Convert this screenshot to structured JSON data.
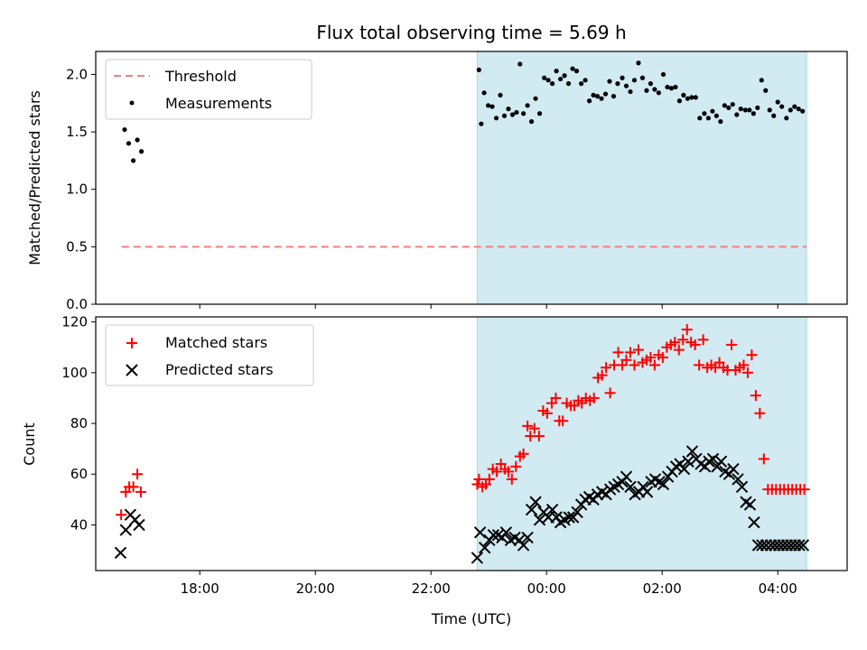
{
  "chart_data": {
    "type": "scatter",
    "title": "Flux total observing time = 5.69 h",
    "xlabel": "Time (UTC)",
    "x_units": "hours since 00:00 UTC",
    "xlim": [
      -7.8,
      5.2
    ],
    "x_ticks": [
      {
        "value": -6,
        "label": "18:00"
      },
      {
        "value": -4,
        "label": "20:00"
      },
      {
        "value": -2,
        "label": "22:00"
      },
      {
        "value": 0,
        "label": "00:00"
      },
      {
        "value": 2,
        "label": "02:00"
      },
      {
        "value": 4,
        "label": "04:00"
      }
    ],
    "shaded_span": [
      -1.2,
      4.5
    ],
    "top_panel": {
      "ylabel": "Matched/Predicted stars",
      "ylim": [
        0,
        2.2
      ],
      "y_ticks": [
        "0.0",
        "0.5",
        "1.0",
        "1.5",
        "2.0"
      ],
      "threshold": {
        "name": "Threshold",
        "value": 0.5,
        "x_range": [
          -7.35,
          4.5
        ],
        "color": "#f08080"
      },
      "measurements": {
        "name": "Measurements",
        "color": "#000000",
        "x": [
          -7.3,
          -7.23,
          -7.15,
          -7.08,
          -7.01,
          -1.17,
          -1.13,
          -1.08,
          -1.01,
          -0.94,
          -0.87,
          -0.8,
          -0.73,
          -0.66,
          -0.59,
          -0.52,
          -0.46,
          -0.4,
          -0.33,
          -0.26,
          -0.19,
          -0.12,
          -0.04,
          0.03,
          0.1,
          0.17,
          0.24,
          0.31,
          0.38,
          0.45,
          0.52,
          0.6,
          0.67,
          0.74,
          0.81,
          0.88,
          0.95,
          1.02,
          1.09,
          1.16,
          1.23,
          1.31,
          1.38,
          1.45,
          1.52,
          1.59,
          1.66,
          1.73,
          1.8,
          1.87,
          1.94,
          2.02,
          2.09,
          2.16,
          2.23,
          2.3,
          2.37,
          2.44,
          2.51,
          2.58,
          2.65,
          2.73,
          2.8,
          2.87,
          2.94,
          3.01,
          3.08,
          3.15,
          3.22,
          3.29,
          3.36,
          3.44,
          3.51,
          3.58,
          3.65,
          3.72,
          3.79,
          3.86,
          3.93,
          4.0,
          4.07,
          4.15,
          4.22,
          4.29,
          4.36,
          4.43
        ],
        "y": [
          1.52,
          1.4,
          1.25,
          1.43,
          1.33,
          2.04,
          1.57,
          1.84,
          1.73,
          1.72,
          1.62,
          1.82,
          1.64,
          1.7,
          1.65,
          1.67,
          2.09,
          1.66,
          1.73,
          1.59,
          1.79,
          1.66,
          1.97,
          1.95,
          1.92,
          2.03,
          1.96,
          1.99,
          1.92,
          2.05,
          2.03,
          1.92,
          1.95,
          1.77,
          1.82,
          1.81,
          1.79,
          1.83,
          1.94,
          1.81,
          1.92,
          1.97,
          1.9,
          1.85,
          1.95,
          2.1,
          1.97,
          1.86,
          1.92,
          1.87,
          1.84,
          2.0,
          1.89,
          1.88,
          1.89,
          1.77,
          1.82,
          1.79,
          1.8,
          1.8,
          1.62,
          1.66,
          1.62,
          1.68,
          1.64,
          1.59,
          1.73,
          1.71,
          1.74,
          1.65,
          1.7,
          1.69,
          1.69,
          1.66,
          1.71,
          1.95,
          1.86,
          1.69,
          1.64,
          1.76,
          1.72,
          1.62,
          1.69,
          1.72,
          1.7,
          1.68
        ]
      }
    },
    "bottom_panel": {
      "ylabel": "Count",
      "ylim": [
        22,
        122
      ],
      "y_ticks": [
        "40",
        "60",
        "80",
        "100",
        "120"
      ],
      "series": [
        {
          "name": "Matched stars",
          "marker": "+",
          "color": "#ff0000",
          "x": [
            -7.36,
            -7.28,
            -7.22,
            -7.15,
            -7.08,
            -7.02,
            -1.2,
            -1.17,
            -1.11,
            -1.05,
            -0.99,
            -0.93,
            -0.86,
            -0.79,
            -0.72,
            -0.66,
            -0.6,
            -0.53,
            -0.46,
            -0.4,
            -0.33,
            -0.28,
            -0.21,
            -0.13,
            -0.06,
            0.01,
            0.09,
            0.16,
            0.22,
            0.28,
            0.35,
            0.42,
            0.48,
            0.55,
            0.61,
            0.68,
            0.75,
            0.82,
            0.89,
            0.96,
            1.03,
            1.1,
            1.17,
            1.24,
            1.31,
            1.38,
            1.45,
            1.52,
            1.59,
            1.66,
            1.73,
            1.8,
            1.87,
            1.94,
            2.01,
            2.08,
            2.15,
            2.22,
            2.29,
            2.36,
            2.43,
            2.5,
            2.57,
            2.64,
            2.71,
            2.78,
            2.85,
            2.92,
            2.99,
            3.06,
            3.13,
            3.2,
            3.27,
            3.34,
            3.41,
            3.48,
            3.55,
            3.62,
            3.69,
            3.76,
            3.83,
            3.9,
            3.97,
            4.04,
            4.11,
            4.18,
            4.25,
            4.32,
            4.39,
            4.46
          ],
          "y": [
            44,
            53,
            55,
            55,
            60,
            53,
            56,
            58,
            55,
            56,
            58,
            62,
            61,
            64,
            62,
            61,
            58,
            63,
            67,
            68,
            79,
            75,
            78,
            75,
            85,
            84,
            88,
            90,
            81,
            81,
            88,
            87,
            87,
            89,
            88,
            90,
            89,
            90,
            98,
            99,
            102,
            92,
            103,
            108,
            103,
            105,
            108,
            103,
            109,
            104,
            105,
            106,
            103,
            107,
            106,
            110,
            111,
            112,
            109,
            113,
            117,
            112,
            111,
            103,
            113,
            102,
            103,
            102,
            104,
            102,
            101,
            111,
            101,
            102,
            103,
            100,
            107,
            91,
            84,
            66,
            54,
            54,
            54,
            54,
            54,
            54,
            54,
            54,
            54,
            54
          ],
          "note": "last points clamp near end"
        },
        {
          "name": "Predicted stars",
          "marker": "x",
          "color": "#000000",
          "x": [
            -7.37,
            -7.28,
            -7.2,
            -7.12,
            -7.05,
            -1.2,
            -1.15,
            -1.07,
            -0.99,
            -0.92,
            -0.84,
            -0.77,
            -0.7,
            -0.62,
            -0.55,
            -0.47,
            -0.4,
            -0.33,
            -0.26,
            -0.19,
            -0.12,
            -0.05,
            0.03,
            0.1,
            0.17,
            0.24,
            0.31,
            0.39,
            0.46,
            0.53,
            0.6,
            0.67,
            0.74,
            0.81,
            0.88,
            0.96,
            1.03,
            1.1,
            1.17,
            1.24,
            1.31,
            1.38,
            1.45,
            1.53,
            1.6,
            1.67,
            1.74,
            1.81,
            1.88,
            1.95,
            2.02,
            2.1,
            2.17,
            2.24,
            2.31,
            2.38,
            2.45,
            2.52,
            2.59,
            2.67,
            2.74,
            2.81,
            2.88,
            2.95,
            3.02,
            3.09,
            3.16,
            3.23,
            3.31,
            3.38,
            3.45,
            3.52,
            3.59,
            3.66,
            3.73,
            3.8,
            3.88,
            3.95,
            4.02,
            4.09,
            4.16,
            4.23,
            4.3,
            4.37,
            4.44
          ],
          "y": [
            29,
            38,
            44,
            42,
            40,
            27,
            37,
            31,
            34,
            36,
            36,
            35,
            37,
            34,
            35,
            34,
            32,
            35,
            46,
            49,
            42,
            45,
            43,
            46,
            43,
            41,
            42,
            43,
            43,
            45,
            48,
            50,
            51,
            50,
            52,
            53,
            52,
            54,
            55,
            56,
            57,
            59,
            55,
            52,
            53,
            55,
            53,
            57,
            58,
            57,
            56,
            59,
            61,
            63,
            64,
            62,
            65,
            69,
            66,
            64,
            63,
            65,
            66,
            63,
            65,
            61,
            60,
            62,
            58,
            55,
            49,
            48,
            41,
            32,
            32,
            32,
            32,
            32,
            32,
            32,
            32,
            32,
            32,
            32,
            32
          ]
        }
      ]
    }
  }
}
